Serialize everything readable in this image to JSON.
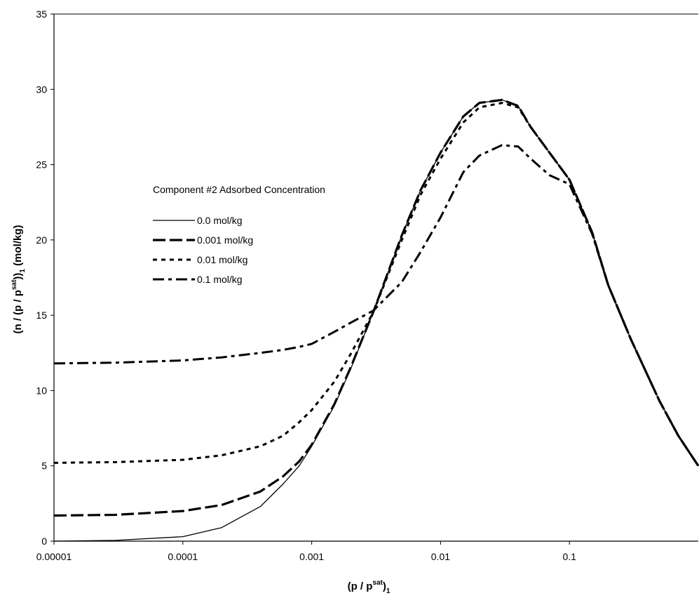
{
  "chart_data": {
    "type": "line",
    "x_scale": "log",
    "xlim": [
      1e-05,
      1
    ],
    "ylim": [
      0,
      35
    ],
    "x_ticks": [
      1e-05,
      0.0001,
      0.001,
      0.01,
      0.1
    ],
    "x_tick_labels": [
      "0.00001",
      "0.0001",
      "0.001",
      "0.01",
      "0.1"
    ],
    "y_ticks": [
      0,
      5,
      10,
      15,
      20,
      25,
      30,
      35
    ],
    "y_tick_labels": [
      "0",
      "5",
      "10",
      "15",
      "20",
      "25",
      "30",
      "35"
    ],
    "xlabel": {
      "base": "(p / p",
      "sup": "sat",
      "close": ")",
      "sub": "1"
    },
    "ylabel": {
      "base": "(n / (p / p",
      "sup": "sat",
      "close": "))",
      "sub": "1",
      "unit": " (mol/kg)"
    },
    "grid": false,
    "legend": {
      "title": "Component #2 Adsorbed Concentration",
      "placement": "center-left"
    },
    "series": [
      {
        "name": "0.0 mol/kg",
        "style": "solid-thin",
        "x": [
          1e-05,
          3e-05,
          0.0001,
          0.0002,
          0.0004,
          0.0006,
          0.0008,
          0.001,
          0.0015,
          0.002,
          0.003,
          0.005,
          0.007,
          0.01,
          0.015,
          0.02,
          0.03,
          0.04,
          0.05,
          0.07,
          0.1,
          0.15,
          0.2,
          0.3,
          0.5,
          0.7,
          1
        ],
        "y": [
          0,
          0.05,
          0.3,
          0.9,
          2.3,
          3.8,
          5.0,
          6.3,
          9.0,
          11.4,
          15.2,
          20.3,
          23.3,
          25.8,
          28.2,
          29.1,
          29.3,
          28.9,
          27.5,
          25.8,
          24.0,
          20.5,
          17.0,
          13.4,
          9.3,
          7.0,
          5.0
        ]
      },
      {
        "name": "0.001 mol/kg",
        "style": "long-dash",
        "x": [
          1e-05,
          3e-05,
          0.0001,
          0.0002,
          0.0004,
          0.0006,
          0.0008,
          0.001,
          0.0015,
          0.002,
          0.003,
          0.005,
          0.007,
          0.01,
          0.015,
          0.02,
          0.03,
          0.04,
          0.05,
          0.07,
          0.1,
          0.15,
          0.2,
          0.3,
          0.5,
          0.7,
          1
        ],
        "y": [
          1.7,
          1.75,
          2.0,
          2.4,
          3.3,
          4.3,
          5.3,
          6.4,
          9.1,
          11.5,
          15.2,
          20.3,
          23.3,
          25.8,
          28.2,
          29.1,
          29.3,
          28.9,
          27.5,
          25.8,
          24.0,
          20.5,
          17.0,
          13.4,
          9.3,
          7.0,
          5.0
        ]
      },
      {
        "name": "0.01 mol/kg",
        "style": "short-dash",
        "x": [
          1e-05,
          3e-05,
          0.0001,
          0.0002,
          0.0004,
          0.0006,
          0.0008,
          0.001,
          0.0015,
          0.002,
          0.003,
          0.005,
          0.007,
          0.01,
          0.015,
          0.02,
          0.03,
          0.04,
          0.05,
          0.07,
          0.1,
          0.15,
          0.2,
          0.3,
          0.5,
          0.7,
          1
        ],
        "y": [
          5.2,
          5.25,
          5.4,
          5.7,
          6.3,
          7.0,
          7.9,
          8.7,
          10.6,
          12.4,
          15.2,
          20.0,
          23.0,
          25.4,
          27.8,
          28.8,
          29.1,
          28.8,
          27.5,
          25.8,
          24.0,
          20.5,
          17.0,
          13.4,
          9.3,
          7.0,
          5.0
        ]
      },
      {
        "name": "0.1 mol/kg",
        "style": "dash-dot",
        "x": [
          1e-05,
          3e-05,
          0.0001,
          0.0002,
          0.0004,
          0.0006,
          0.0008,
          0.001,
          0.0015,
          0.002,
          0.003,
          0.005,
          0.007,
          0.01,
          0.015,
          0.02,
          0.03,
          0.04,
          0.05,
          0.07,
          0.1,
          0.15,
          0.2,
          0.3,
          0.5,
          0.7,
          1
        ],
        "y": [
          11.8,
          11.85,
          12.0,
          12.2,
          12.5,
          12.7,
          12.9,
          13.1,
          13.9,
          14.5,
          15.3,
          17.2,
          19.2,
          21.5,
          24.5,
          25.6,
          26.3,
          26.2,
          25.4,
          24.3,
          23.7,
          20.4,
          17.0,
          13.4,
          9.3,
          7.0,
          5.0
        ]
      }
    ]
  }
}
